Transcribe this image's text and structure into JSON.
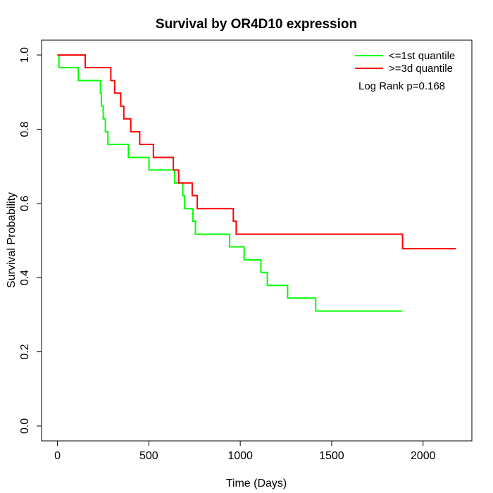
{
  "chart_data": {
    "type": "line",
    "subtype": "step-survival",
    "title": "Survival by OR4D10 expression",
    "xlabel": "Time (Days)",
    "ylabel": "Survival Probability",
    "xlim": [
      0,
      2180
    ],
    "ylim": [
      0.0,
      1.0
    ],
    "grid": "off",
    "legend_position": "top-right",
    "x_ticks": [
      0,
      500,
      1000,
      1500,
      2000
    ],
    "y_ticks": [
      0.0,
      0.2,
      0.4,
      0.6,
      0.8,
      1.0
    ],
    "y_tick_labels": [
      "0.0",
      "0.2",
      "0.4",
      "0.6",
      "0.8",
      "1.0"
    ],
    "x_tick_labels": [
      "0",
      "500",
      "1000",
      "1500",
      "2000"
    ],
    "annotation": "Log Rank p=0.168",
    "series": [
      {
        "name": "<=1st quantile",
        "color": "#00ff00",
        "end_time": 1887,
        "points": [
          [
            0,
            1.0
          ],
          [
            8,
            0.966
          ],
          [
            114,
            0.931
          ],
          [
            235,
            0.897
          ],
          [
            240,
            0.862
          ],
          [
            250,
            0.828
          ],
          [
            262,
            0.793
          ],
          [
            276,
            0.759
          ],
          [
            388,
            0.724
          ],
          [
            501,
            0.69
          ],
          [
            641,
            0.655
          ],
          [
            686,
            0.621
          ],
          [
            696,
            0.586
          ],
          [
            741,
            0.552
          ],
          [
            755,
            0.517
          ],
          [
            942,
            0.483
          ],
          [
            1021,
            0.448
          ],
          [
            1113,
            0.414
          ],
          [
            1148,
            0.379
          ],
          [
            1259,
            0.345
          ],
          [
            1413,
            0.31
          ]
        ]
      },
      {
        "name": ">=3d quantile",
        "color": "#ff0000",
        "end_time": 2180,
        "points": [
          [
            0,
            1.0
          ],
          [
            152,
            0.966
          ],
          [
            292,
            0.931
          ],
          [
            313,
            0.897
          ],
          [
            346,
            0.862
          ],
          [
            363,
            0.828
          ],
          [
            401,
            0.793
          ],
          [
            450,
            0.759
          ],
          [
            525,
            0.724
          ],
          [
            634,
            0.69
          ],
          [
            663,
            0.655
          ],
          [
            737,
            0.621
          ],
          [
            765,
            0.586
          ],
          [
            962,
            0.552
          ],
          [
            978,
            0.517
          ],
          [
            1888,
            0.478
          ]
        ]
      }
    ]
  }
}
